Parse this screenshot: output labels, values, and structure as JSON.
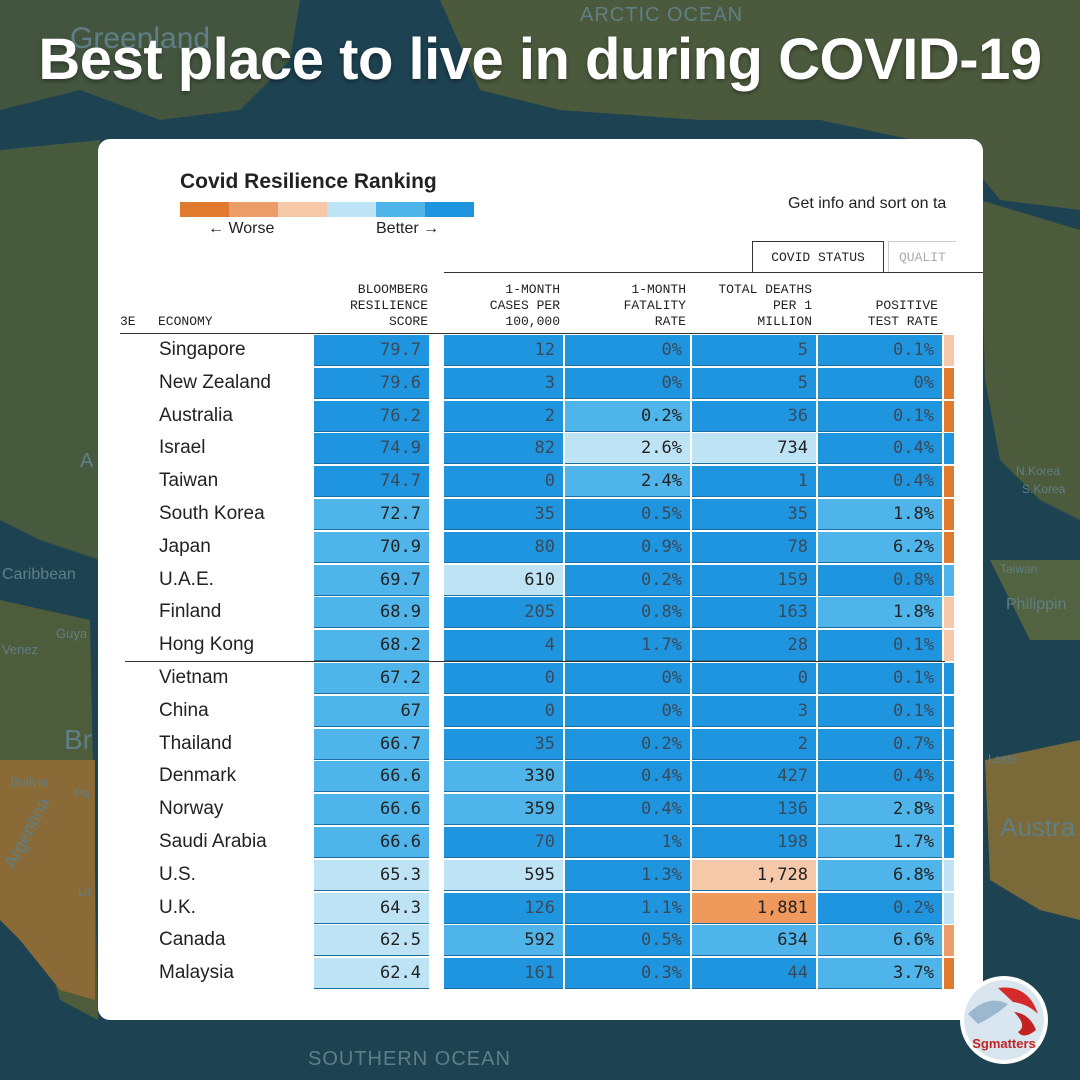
{
  "headline": "Best place to live in during COVID-19",
  "map_labels": {
    "arctic": "ARCTIC OCEAN",
    "southern": "SOUTHERN OCEAN",
    "greenland": "Greenland",
    "caribbean": "Caribbean",
    "guyana": "Guya",
    "venez": "Venez",
    "brazil": "Br",
    "bolivia": "Bolivia",
    "paraguay": "Pa",
    "argentina": "Argentina",
    "uruguay": "Ur",
    "north_korea": "N.Korea",
    "south_korea": "S.Korea",
    "taiwan": "Taiwan",
    "philippines": "Philippin",
    "australia": "Austra",
    "timor": "Leste",
    "atlantic": "A"
  },
  "chart": {
    "title": "Covid Resilience Ranking",
    "worse_label": "← Worse",
    "better_label": "Better →",
    "info_text": "Get info and sort on ta",
    "tab_active": "COVID STATUS",
    "tab_inactive": "QUALIT",
    "headers": {
      "rank": "3E",
      "economy": "ECONOMY",
      "score": "BLOOMBERG\nRESILIENCE\nSCORE",
      "cases": "1-MONTH\nCASES PER\n100,000",
      "fatality": "1-MONTH\nFATALITY\nRATE",
      "deaths": "TOTAL DEATHS\nPER 1\nMILLION",
      "positive": "POSITIVE\nTEST RATE"
    }
  },
  "colors": {
    "scale": [
      "#e07a2e",
      "#ea9d68",
      "#f5c8aa",
      "#bde3f5",
      "#4fb4ea",
      "#1f95e0"
    ],
    "dark_blue": "#1f95e0",
    "mid_blue": "#4fb4ea",
    "light_blue": "#bde3f5",
    "light_orange": "#f5c8aa",
    "orange": "#ef9a5c"
  },
  "logo_text": "Sgmatters",
  "chart_data": {
    "type": "table",
    "columns": [
      "ECONOMY",
      "BLOOMBERG RESILIENCE SCORE",
      "1-MONTH CASES PER 100,000",
      "1-MONTH FATALITY RATE",
      "TOTAL DEATHS PER 1 MILLION",
      "POSITIVE TEST RATE"
    ],
    "rows": [
      {
        "economy": "Singapore",
        "score": "79.7",
        "cases": "12",
        "fatality": "0%",
        "deaths": "5",
        "positive": "0.1%",
        "c": [
          "d",
          "d",
          "d",
          "d",
          "d"
        ],
        "edge": "#f5c8aa"
      },
      {
        "economy": "New Zealand",
        "score": "79.6",
        "cases": "3",
        "fatality": "0%",
        "deaths": "5",
        "positive": "0%",
        "c": [
          "d",
          "d",
          "d",
          "d",
          "d"
        ],
        "edge": "#e07a2e"
      },
      {
        "economy": "Australia",
        "score": "76.2",
        "cases": "2",
        "fatality": "0.2%",
        "deaths": "36",
        "positive": "0.1%",
        "c": [
          "d",
          "d",
          "m",
          "d",
          "d"
        ],
        "edge": "#e07a2e"
      },
      {
        "economy": "Israel",
        "score": "74.9",
        "cases": "82",
        "fatality": "2.6%",
        "deaths": "734",
        "positive": "0.4%",
        "c": [
          "d",
          "d",
          "l",
          "l",
          "d"
        ],
        "edge": "#1f95e0"
      },
      {
        "economy": "Taiwan",
        "score": "74.7",
        "cases": "0",
        "fatality": "2.4%",
        "deaths": "1",
        "positive": "0.4%",
        "c": [
          "d",
          "d",
          "m",
          "d",
          "d"
        ],
        "edge": "#e07a2e"
      },
      {
        "economy": "South Korea",
        "score": "72.7",
        "cases": "35",
        "fatality": "0.5%",
        "deaths": "35",
        "positive": "1.8%",
        "c": [
          "m",
          "d",
          "d",
          "d",
          "m"
        ],
        "edge": "#e07a2e"
      },
      {
        "economy": "Japan",
        "score": "70.9",
        "cases": "80",
        "fatality": "0.9%",
        "deaths": "78",
        "positive": "6.2%",
        "c": [
          "m",
          "d",
          "d",
          "d",
          "m"
        ],
        "edge": "#e07a2e"
      },
      {
        "economy": "U.A.E.",
        "score": "69.7",
        "cases": "610",
        "fatality": "0.2%",
        "deaths": "159",
        "positive": "0.8%",
        "c": [
          "m",
          "l",
          "d",
          "d",
          "d"
        ],
        "edge": "#4fb4ea"
      },
      {
        "economy": "Finland",
        "score": "68.9",
        "cases": "205",
        "fatality": "0.8%",
        "deaths": "163",
        "positive": "1.8%",
        "c": [
          "m",
          "d",
          "d",
          "d",
          "m"
        ],
        "edge": "#f5c8aa"
      },
      {
        "economy": "Hong Kong",
        "score": "68.2",
        "cases": "4",
        "fatality": "1.7%",
        "deaths": "28",
        "positive": "0.1%",
        "c": [
          "m",
          "d",
          "d",
          "d",
          "d"
        ],
        "edge": "#f5c8aa"
      },
      {
        "economy": "Vietnam",
        "score": "67.2",
        "cases": "0",
        "fatality": "0%",
        "deaths": "0",
        "positive": "0.1%",
        "c": [
          "m",
          "d",
          "d",
          "d",
          "d"
        ],
        "edge": "#1f95e0"
      },
      {
        "economy": "China",
        "score": "67",
        "cases": "0",
        "fatality": "0%",
        "deaths": "3",
        "positive": "0.1%",
        "c": [
          "m",
          "d",
          "d",
          "d",
          "d"
        ],
        "edge": "#1f95e0"
      },
      {
        "economy": "Thailand",
        "score": "66.7",
        "cases": "35",
        "fatality": "0.2%",
        "deaths": "2",
        "positive": "0.7%",
        "c": [
          "m",
          "d",
          "d",
          "d",
          "d"
        ],
        "edge": "#1f95e0"
      },
      {
        "economy": "Denmark",
        "score": "66.6",
        "cases": "330",
        "fatality": "0.4%",
        "deaths": "427",
        "positive": "0.4%",
        "c": [
          "m",
          "m",
          "d",
          "d",
          "d"
        ],
        "edge": "#1f95e0"
      },
      {
        "economy": "Norway",
        "score": "66.6",
        "cases": "359",
        "fatality": "0.4%",
        "deaths": "136",
        "positive": "2.8%",
        "c": [
          "m",
          "m",
          "d",
          "d",
          "m"
        ],
        "edge": "#1f95e0"
      },
      {
        "economy": "Saudi Arabia",
        "score": "66.6",
        "cases": "70",
        "fatality": "1%",
        "deaths": "198",
        "positive": "1.7%",
        "c": [
          "m",
          "d",
          "d",
          "d",
          "m"
        ],
        "edge": "#1f95e0"
      },
      {
        "economy": "U.S.",
        "score": "65.3",
        "cases": "595",
        "fatality": "1.3%",
        "deaths": "1,728",
        "positive": "6.8%",
        "c": [
          "l",
          "l",
          "d",
          "lo",
          "m"
        ],
        "edge": "#bde3f5"
      },
      {
        "economy": "U.K.",
        "score": "64.3",
        "cases": "126",
        "fatality": "1.1%",
        "deaths": "1,881",
        "positive": "0.2%",
        "c": [
          "l",
          "d",
          "d",
          "o",
          "d"
        ],
        "edge": "#bde3f5"
      },
      {
        "economy": "Canada",
        "score": "62.5",
        "cases": "592",
        "fatality": "0.5%",
        "deaths": "634",
        "positive": "6.6%",
        "c": [
          "l",
          "m",
          "d",
          "m",
          "m"
        ],
        "edge": "#ea9d68"
      },
      {
        "economy": "Malaysia",
        "score": "62.4",
        "cases": "161",
        "fatality": "0.3%",
        "deaths": "44",
        "positive": "3.7%",
        "c": [
          "l",
          "d",
          "d",
          "d",
          "m"
        ],
        "edge": "#e07a2e"
      }
    ]
  }
}
